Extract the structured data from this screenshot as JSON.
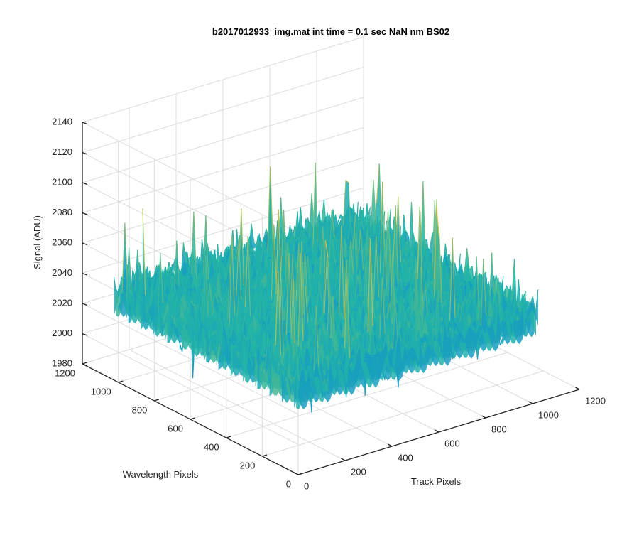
{
  "chart_data": {
    "type": "surface",
    "title": "b2017012933_img.mat int time = 0.1 sec  NaN nm BS02",
    "xlabel": "Track Pixels",
    "ylabel": "Wavelength Pixels",
    "zlabel": "Signal (ADU)",
    "xlim": [
      0,
      1200
    ],
    "ylim": [
      0,
      1200
    ],
    "zlim": [
      1980,
      2140
    ],
    "x_ticks": [
      "0",
      "200",
      "400",
      "600",
      "800",
      "1000",
      "1200"
    ],
    "y_ticks": [
      "0",
      "200",
      "400",
      "600",
      "800",
      "1000",
      "1200"
    ],
    "z_ticks": [
      "1980",
      "2000",
      "2020",
      "2040",
      "2060",
      "2080",
      "2100",
      "2120",
      "2140"
    ],
    "data_extent": {
      "x": [
        0,
        1024
      ],
      "y": [
        0,
        1024
      ]
    },
    "signal": {
      "mean": 2040,
      "min": 1985,
      "max": 2135
    },
    "grid": true,
    "colors": {
      "low": "#0f8fd0",
      "mid": "#23b5a6",
      "high": "#e8c040",
      "axis": "#262626",
      "grid": "#dcdcdc"
    }
  }
}
